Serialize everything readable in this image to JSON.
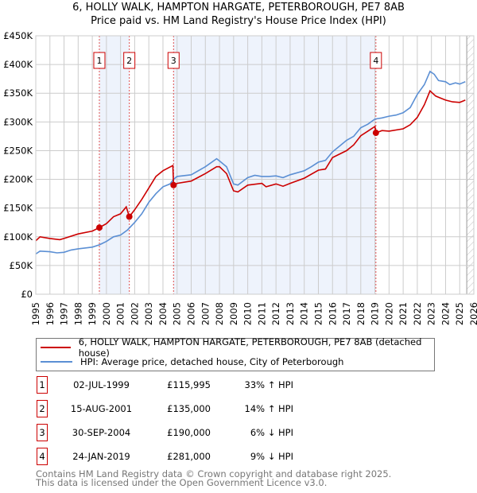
{
  "title_line1": "6, HOLLY WALK, HAMPTON HARGATE, PETERBOROUGH, PE7 8AB",
  "title_line2": "Price paid vs. HM Land Registry's House Price Index (HPI)",
  "chart_data": {
    "type": "line",
    "xlim": [
      1995,
      2026
    ],
    "ylim": [
      0,
      450000
    ],
    "x_ticks": [
      "1995",
      "1996",
      "1997",
      "1998",
      "1999",
      "2000",
      "2001",
      "2002",
      "2003",
      "2004",
      "2005",
      "2006",
      "2007",
      "2008",
      "2009",
      "2010",
      "2011",
      "2012",
      "2013",
      "2014",
      "2015",
      "2016",
      "2017",
      "2018",
      "2019",
      "2020",
      "2021",
      "2022",
      "2023",
      "2024",
      "2025",
      "2026"
    ],
    "y_ticks": [
      {
        "value": 0,
        "label": "£0"
      },
      {
        "value": 50000,
        "label": "£50K"
      },
      {
        "value": 100000,
        "label": "£100K"
      },
      {
        "value": 150000,
        "label": "£150K"
      },
      {
        "value": 200000,
        "label": "£200K"
      },
      {
        "value": 250000,
        "label": "£250K"
      },
      {
        "value": 300000,
        "label": "£300K"
      },
      {
        "value": 350000,
        "label": "£350K"
      },
      {
        "value": 400000,
        "label": "£400K"
      },
      {
        "value": 450000,
        "label": "£450K"
      }
    ],
    "grid": true,
    "forecast_hatch_from": 2025.5,
    "shaded_periods": [
      [
        1999.5,
        2001.62
      ],
      [
        2004.75,
        2019.07
      ]
    ],
    "series": [
      {
        "name": "6, HOLLY WALK, HAMPTON HARGATE, PETERBOROUGH, PE7 8AB (detached house)",
        "color": "#cc0000",
        "x": [
          1995,
          1995.3,
          1996,
          1996.7,
          1997,
          1998,
          1999,
          1999.5,
          2000,
          2000.5,
          2001,
          2001.4,
          2001.62,
          2002,
          2002.5,
          2003,
          2003.5,
          2004,
          2004.7,
          2004.75,
          2005,
          2006,
          2007,
          2007.8,
          2008,
          2008.5,
          2009,
          2009.3,
          2010,
          2011,
          2011.3,
          2012,
          2012.5,
          2013,
          2014,
          2015,
          2015.5,
          2016,
          2017,
          2017.5,
          2018,
          2018.5,
          2019,
          2019.07,
          2019.5,
          2020,
          2021,
          2021.5,
          2022,
          2022.5,
          2022.9,
          2023.3,
          2023.6,
          2024,
          2024.5,
          2025,
          2025.4
        ],
        "y": [
          93000,
          100000,
          97000,
          95000,
          97000,
          105000,
          110000,
          116000,
          123000,
          135000,
          140000,
          152000,
          135000,
          147000,
          165000,
          185000,
          205000,
          215000,
          224000,
          190000,
          193000,
          197000,
          210000,
          222000,
          222000,
          210000,
          180000,
          178000,
          190000,
          193000,
          187000,
          192000,
          188000,
          193000,
          202000,
          216000,
          218000,
          238000,
          250000,
          260000,
          276000,
          284000,
          292000,
          281000,
          285000,
          284000,
          288000,
          295000,
          308000,
          330000,
          354000,
          345000,
          342000,
          338000,
          335000,
          334000,
          338000
        ]
      },
      {
        "name": "HPI: Average price, detached house, City of Peterborough",
        "color": "#5b8fd4",
        "x": [
          1995,
          1995.3,
          1996,
          1996.5,
          1997,
          1997.5,
          1998,
          1999,
          1999.5,
          2000,
          2000.5,
          2001,
          2001.5,
          2002,
          2002.5,
          2003,
          2003.5,
          2004,
          2004.5,
          2004.75,
          2005,
          2006,
          2007,
          2007.8,
          2008,
          2008.5,
          2009,
          2009.3,
          2010,
          2010.5,
          2011,
          2011.5,
          2012,
          2012.5,
          2013,
          2014,
          2014.5,
          2015,
          2015.5,
          2016,
          2016.5,
          2017,
          2017.5,
          2018,
          2018.5,
          2019,
          2019.5,
          2020,
          2020.5,
          2021,
          2021.5,
          2022,
          2022.5,
          2022.9,
          2023.2,
          2023.5,
          2024,
          2024.3,
          2024.7,
          2025,
          2025.4
        ],
        "y": [
          70000,
          75000,
          74000,
          72000,
          73000,
          77000,
          79000,
          82000,
          86000,
          92000,
          100000,
          103000,
          112000,
          125000,
          140000,
          160000,
          175000,
          187000,
          192000,
          200000,
          205000,
          208000,
          222000,
          236000,
          232000,
          222000,
          192000,
          190000,
          203000,
          207000,
          205000,
          205000,
          206000,
          203000,
          208000,
          215000,
          222000,
          230000,
          233000,
          248000,
          258000,
          268000,
          275000,
          290000,
          296000,
          305000,
          307000,
          310000,
          312000,
          316000,
          325000,
          348000,
          365000,
          388000,
          383000,
          372000,
          370000,
          365000,
          368000,
          366000,
          370000
        ]
      }
    ],
    "sales": [
      {
        "id": "1",
        "x": 1999.5,
        "y": 115995
      },
      {
        "id": "2",
        "x": 2001.62,
        "y": 135000
      },
      {
        "id": "3",
        "x": 2004.75,
        "y": 190000
      },
      {
        "id": "4",
        "x": 2019.07,
        "y": 281000
      }
    ]
  },
  "legend": {
    "property": "6, HOLLY WALK, HAMPTON HARGATE, PETERBOROUGH, PE7 8AB (detached house)",
    "hpi": "HPI: Average price, detached house, City of Peterborough"
  },
  "transactions": [
    {
      "num": "1",
      "date": "02-JUL-1999",
      "price": "£115,995",
      "hpi": "33% ↑ HPI"
    },
    {
      "num": "2",
      "date": "15-AUG-2001",
      "price": "£135,000",
      "hpi": "14% ↑ HPI"
    },
    {
      "num": "3",
      "date": "30-SEP-2004",
      "price": "£190,000",
      "hpi": "6% ↓ HPI"
    },
    {
      "num": "4",
      "date": "24-JAN-2019",
      "price": "£281,000",
      "hpi": "9% ↓ HPI"
    }
  ],
  "footer_line1": "Contains HM Land Registry data © Crown copyright and database right 2025.",
  "footer_line2": "This data is licensed under the Open Government Licence v3.0."
}
